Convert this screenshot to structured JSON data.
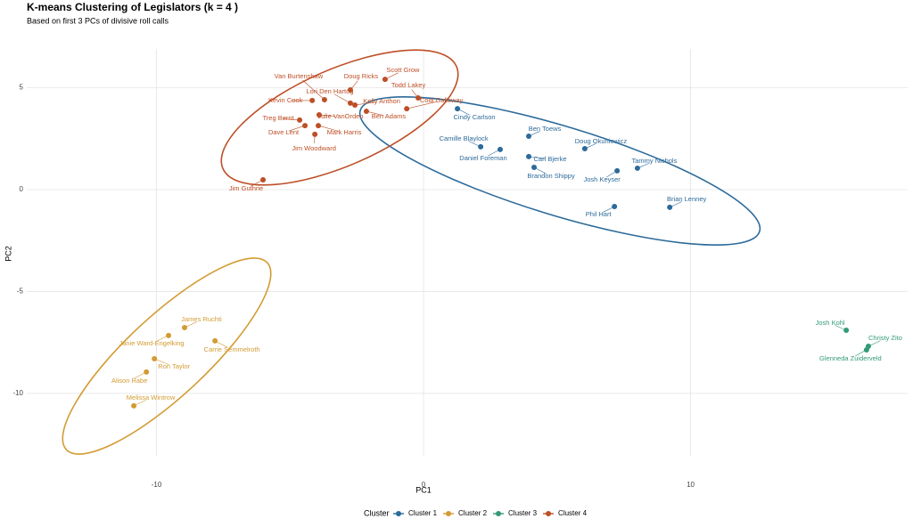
{
  "chart_data": {
    "type": "scatter",
    "title": "K-means Clustering of Legislators (k = 4 )",
    "subtitle": "Based on first 3 PCs of divisive roll calls",
    "x_label": "PC1",
    "y_label": "PC2",
    "xlim": [
      -14.86,
      18.13
    ],
    "ylim": [
      -13.06,
      6.9
    ],
    "xticks": [
      -10,
      0,
      10
    ],
    "yticks": [
      -10,
      -5,
      0,
      5
    ],
    "grid": true,
    "legend_position": "bottom",
    "legend_title": "Cluster",
    "series": [
      {
        "name": "Cluster 1",
        "color": "#2c6a9a",
        "x": [
          1.27,
          3.94,
          2.14,
          2.87,
          6.04,
          3.94,
          4.14,
          8.01,
          7.25,
          7.15,
          9.22
        ],
        "y": [
          3.97,
          2.62,
          2.1,
          1.97,
          2.01,
          1.62,
          1.09,
          1.05,
          0.92,
          -0.83,
          -0.87
        ],
        "labels": [
          "Cindy Carlson",
          "Ben Toews",
          "Camille Blaylock",
          "Daniel Foreman",
          "Doug Okuniewicz",
          "Carl Bjerke",
          "Brandon Shippy",
          "Tammy Nichols",
          "Josh Keyser",
          "Phil Hart",
          "Brian Lenney"
        ]
      },
      {
        "name": "Cluster 2",
        "color": "#d39b32",
        "x": [
          -8.95,
          -9.55,
          -7.81,
          -10.08,
          -10.38,
          -10.85
        ],
        "y": [
          -6.77,
          -7.16,
          -7.42,
          -8.3,
          -8.95,
          -10.61
        ],
        "labels": [
          "James Ruchti",
          "Janie Ward-Engelking",
          "Carrie Semmelroth",
          "Ron Taylor",
          "Alison Rabe",
          "Melissa Wintrow"
        ]
      },
      {
        "name": "Cluster 3",
        "color": "#349a76",
        "x": [
          15.83,
          16.66,
          16.59
        ],
        "y": [
          -6.9,
          -7.69,
          -7.86
        ],
        "labels": [
          "Josh Kohl",
          "Christy Zito",
          "Glenneda Zuiderveld"
        ]
      },
      {
        "name": "Cluster 4",
        "color": "#bd4f26",
        "x": [
          -1.44,
          -2.74,
          -3.71,
          -2.74,
          -4.17,
          -2.57,
          -0.2,
          -0.63,
          -2.14,
          -3.91,
          -4.64,
          -4.44,
          -3.94,
          -4.07,
          -6.01
        ],
        "y": [
          5.41,
          4.89,
          4.41,
          4.24,
          4.37,
          4.15,
          4.5,
          3.97,
          3.84,
          3.67,
          3.41,
          3.14,
          3.14,
          2.71,
          0.48
        ],
        "labels": [
          "Scott Grow",
          "Doug Ricks",
          "Van Burtenshaw",
          "Lori Den Hartog",
          "Kevin Cook",
          "Kelly Anthon",
          "Todd Lakey",
          "Codi Galloway",
          "Ben Adams",
          "Julie VanOrden",
          "Treg Bernt",
          "Dave Lent",
          "Mark Harris",
          "Jim Woodward",
          "Jim Guthrie"
        ]
      }
    ]
  }
}
